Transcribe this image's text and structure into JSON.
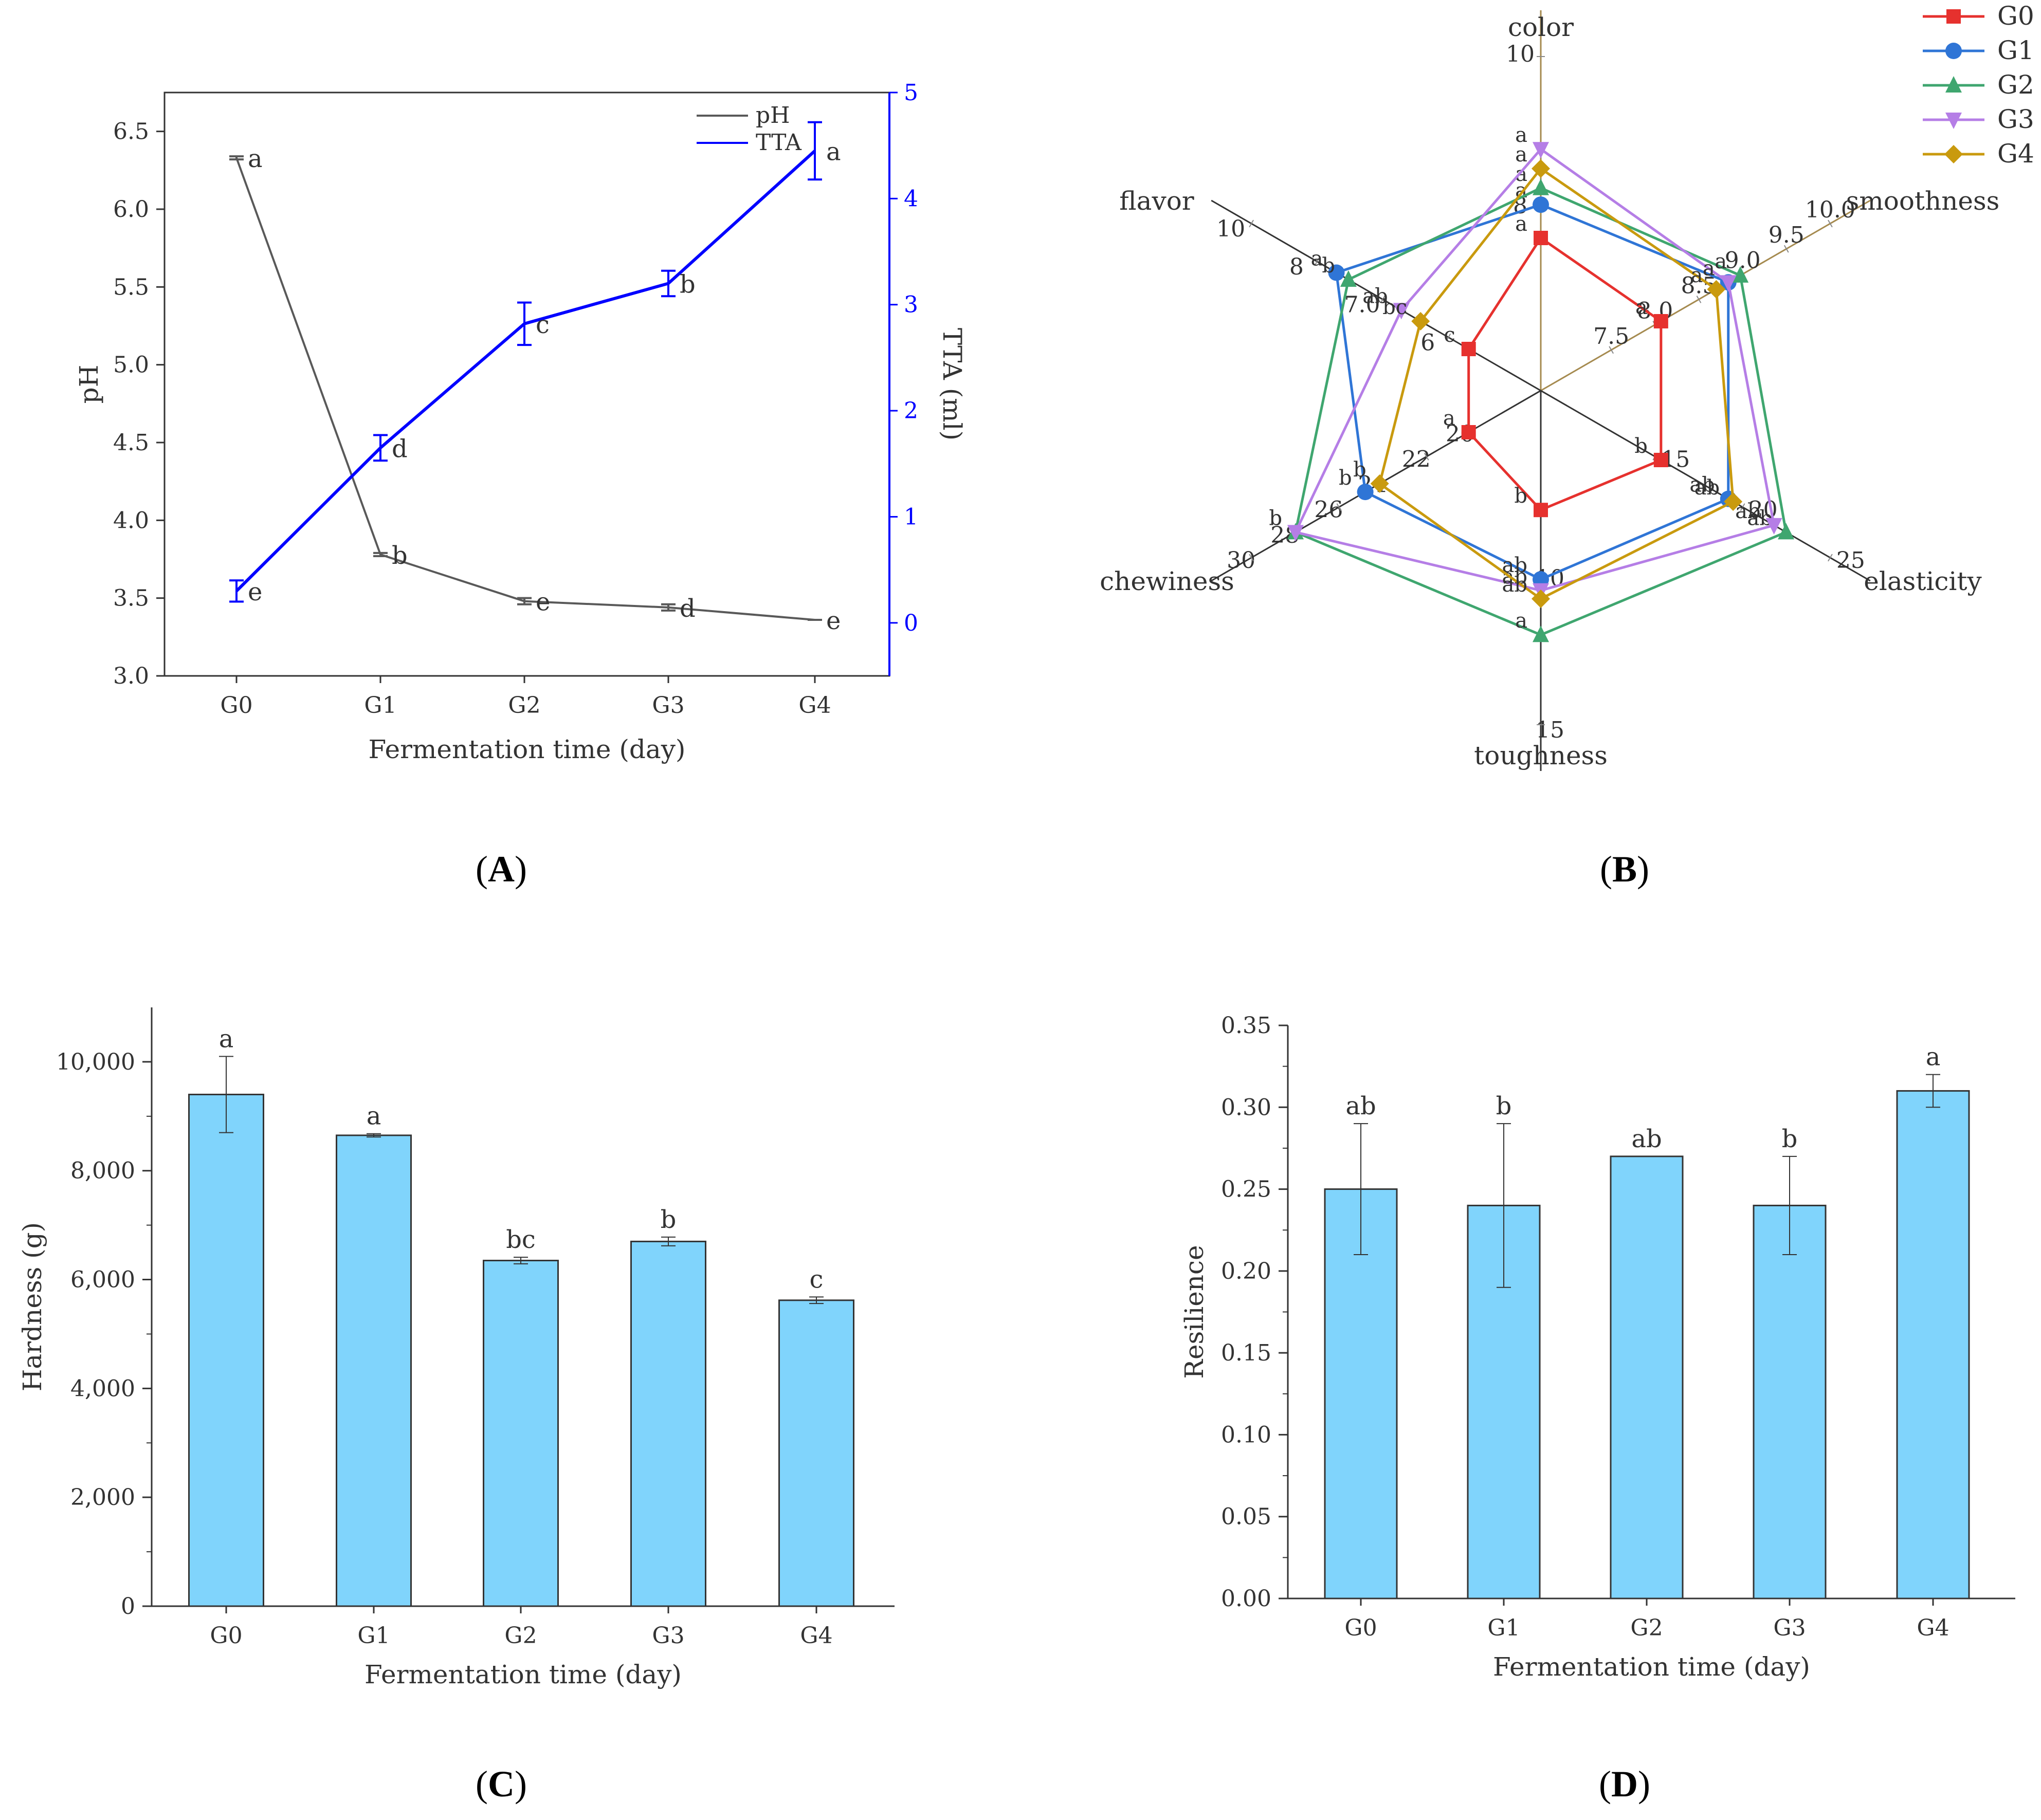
{
  "chart_data": [
    {
      "panel": "A",
      "type": "line",
      "xlabel": "Fermentation time (day)",
      "ylabel": "pH",
      "y2label": "TTA (ml)",
      "categories": [
        "G0",
        "G1",
        "G2",
        "G3",
        "G4"
      ],
      "ylim": [
        3.0,
        6.75
      ],
      "yticks": [
        "3.0",
        "3.5",
        "4.0",
        "4.5",
        "5.0",
        "5.5",
        "6.0",
        "6.5"
      ],
      "y2lim": [
        -0.5,
        5
      ],
      "y2ticks": [
        "0",
        "1",
        "2",
        "3",
        "4",
        "5"
      ],
      "series": [
        {
          "name": "pH",
          "color": "#595959",
          "axis": "left",
          "values": [
            6.33,
            3.78,
            3.48,
            3.44,
            3.36
          ],
          "errors": [
            0.01,
            0.01,
            0.02,
            0.02,
            0.0
          ],
          "letters": [
            "a",
            "b",
            "e",
            "d",
            "e"
          ]
        },
        {
          "name": "TTA",
          "color": "#0000ff",
          "axis": "right",
          "values": [
            0.3,
            1.65,
            2.82,
            3.2,
            4.45
          ],
          "errors": [
            0.1,
            0.12,
            0.2,
            0.12,
            0.27
          ],
          "letters": [
            "e",
            "d",
            "c",
            "b",
            "a"
          ]
        }
      ],
      "legend": [
        "pH",
        "TTA"
      ]
    },
    {
      "panel": "B",
      "type": "radar",
      "axes": [
        {
          "name": "color",
          "ticks": [
            "8",
            "10"
          ]
        },
        {
          "name": "smoothness",
          "ticks": [
            "7.5",
            "8.0",
            "8.5",
            "9.0",
            "9.5",
            "10.0"
          ]
        },
        {
          "name": "elasticity",
          "ticks": [
            "15",
            "20",
            "25"
          ]
        },
        {
          "name": "toughness",
          "ticks": [
            "10",
            "15"
          ]
        },
        {
          "name": "chewiness",
          "ticks": [
            "20",
            "22",
            "24",
            "26",
            "28",
            "30"
          ]
        },
        {
          "name": "flavor",
          "ticks": [
            "6",
            "7.0",
            "8",
            "10"
          ]
        }
      ],
      "series": [
        {
          "name": "G0",
          "color": "#e6312e",
          "marker": "square",
          "values": [
            0.55,
            0.5,
            0.5,
            0.43,
            0.3,
            0.3
          ],
          "letters": [
            "a",
            "a",
            "b",
            "b",
            "a",
            "c"
          ]
        },
        {
          "name": "G1",
          "color": "#2f75d6",
          "marker": "circle",
          "values": [
            0.67,
            0.78,
            0.78,
            0.68,
            0.73,
            0.85
          ],
          "letters": [
            "a",
            "a",
            "ab",
            "ab",
            "b",
            "a"
          ]
        },
        {
          "name": "G2",
          "color": "#3fa66f",
          "marker": "triangle-up",
          "values": [
            0.73,
            0.83,
            1.02,
            0.88,
            1.02,
            0.8
          ],
          "letters": [
            "a",
            "a",
            "ab",
            "a",
            "b",
            "b"
          ]
        },
        {
          "name": "G3",
          "color": "#b57ee6",
          "marker": "triangle-down",
          "values": [
            0.87,
            0.78,
            0.97,
            0.72,
            1.02,
            0.58
          ],
          "letters": [
            "a",
            "a",
            "ab",
            "ab",
            "b",
            "ab"
          ]
        },
        {
          "name": "G4",
          "color": "#c99a0e",
          "marker": "diamond",
          "values": [
            0.8,
            0.73,
            0.8,
            0.75,
            0.67,
            0.5
          ],
          "letters": [
            "a",
            "a",
            "ab",
            "ab",
            "b",
            "bc"
          ]
        }
      ]
    },
    {
      "panel": "C",
      "type": "bar",
      "xlabel": "Fermentation time (day)",
      "ylabel": "Hardness (g)",
      "categories": [
        "G0",
        "G1",
        "G2",
        "G3",
        "G4"
      ],
      "values": [
        9400,
        8650,
        6350,
        6700,
        5620
      ],
      "errors": [
        700,
        30,
        60,
        80,
        60
      ],
      "letters": [
        "a",
        "a",
        "bc",
        "b",
        "c"
      ],
      "ylim": [
        0,
        11000
      ],
      "yticks": [
        "0",
        "2,000",
        "4,000",
        "6,000",
        "8,000",
        "10,000"
      ],
      "bar_color": "#80d4fc"
    },
    {
      "panel": "D",
      "type": "bar",
      "xlabel": "Fermentation time (day)",
      "ylabel": "Resilience",
      "categories": [
        "G0",
        "G1",
        "G2",
        "G3",
        "G4"
      ],
      "values": [
        0.25,
        0.24,
        0.27,
        0.24,
        0.31
      ],
      "errors": [
        0.04,
        0.05,
        0.0,
        0.03,
        0.01
      ],
      "letters": [
        "ab",
        "b",
        "ab",
        "b",
        "a"
      ],
      "ylim": [
        0,
        0.35
      ],
      "yticks": [
        "0.00",
        "0.05",
        "0.10",
        "0.15",
        "0.20",
        "0.25",
        "0.30",
        "0.35"
      ],
      "bar_color": "#80d4fc"
    }
  ],
  "panel_labels": [
    "A",
    "B",
    "C",
    "D"
  ]
}
